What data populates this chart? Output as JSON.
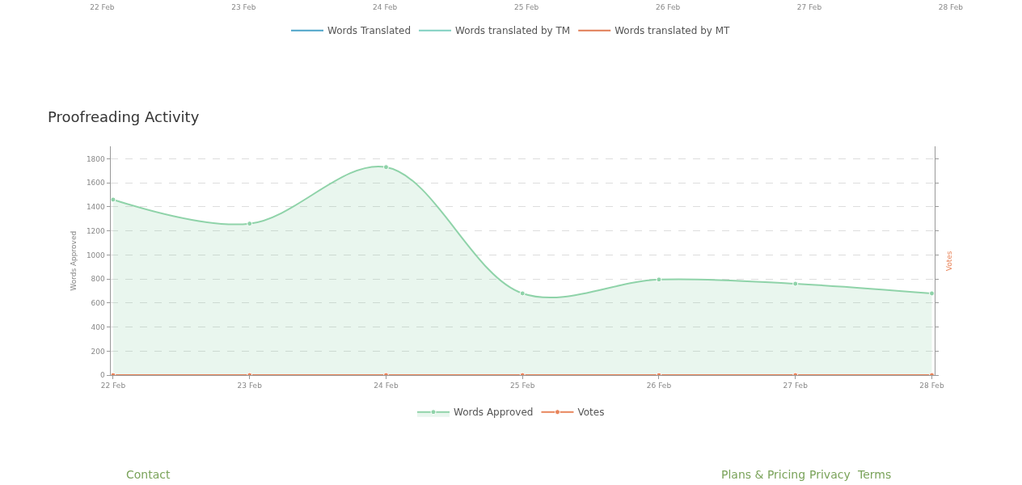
{
  "chart_data": [
    {
      "type": "other",
      "categories": [
        "22 Feb",
        "23 Feb",
        "24 Feb",
        "25 Feb",
        "26 Feb",
        "27 Feb",
        "28 Feb"
      ],
      "legend": "bottom",
      "series": [
        {
          "name": "Words Translated",
          "color": "#4aa3c8",
          "values": [
            null,
            null,
            null,
            null,
            null,
            null,
            null
          ]
        },
        {
          "name": "Words translated by TM",
          "color": "#7ecfc0",
          "values": [
            null,
            null,
            null,
            null,
            null,
            null,
            null
          ]
        },
        {
          "name": "Words translated by MT",
          "color": "#e07b53",
          "values": [
            null,
            null,
            null,
            null,
            null,
            null,
            null
          ]
        }
      ]
    },
    {
      "type": "area",
      "title": "Proofreading Activity",
      "ylabel": "Words Approved",
      "y2label": "Votes",
      "categories": [
        "22 Feb",
        "23 Feb",
        "24 Feb",
        "25 Feb",
        "26 Feb",
        "27 Feb",
        "28 Feb"
      ],
      "ylim": [
        0,
        1900
      ],
      "yticks": [
        0,
        200,
        400,
        600,
        800,
        1000,
        1200,
        1400,
        1600,
        1800
      ],
      "grid": "y",
      "legend": "bottom",
      "marker": "circle",
      "series": [
        {
          "name": "Words Approved",
          "color": "#8fd3a9",
          "values": [
            1460,
            1260,
            1730,
            680,
            795,
            760,
            680
          ]
        },
        {
          "name": "Votes",
          "type": "line",
          "color": "#e8845a",
          "values": [
            0,
            0,
            0,
            0,
            0,
            0,
            0
          ]
        }
      ],
      "annotations": [
        "Contact",
        "Plans & Pricing",
        "Privacy",
        "Terms"
      ]
    }
  ]
}
